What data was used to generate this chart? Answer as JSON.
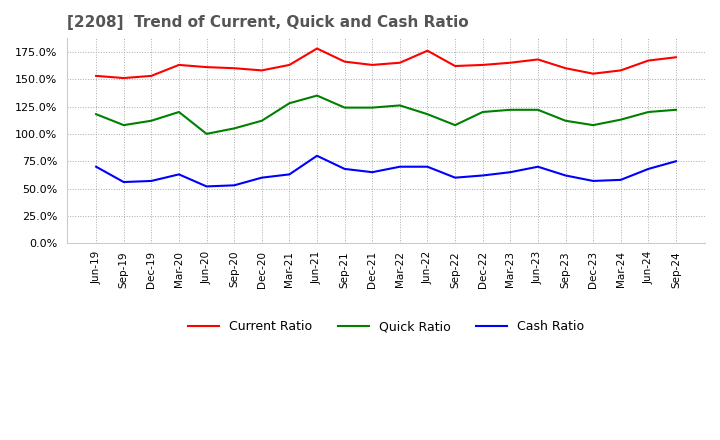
{
  "title": "[2208]  Trend of Current, Quick and Cash Ratio",
  "x_labels": [
    "Jun-19",
    "Sep-19",
    "Dec-19",
    "Mar-20",
    "Jun-20",
    "Sep-20",
    "Dec-20",
    "Mar-21",
    "Jun-21",
    "Sep-21",
    "Dec-21",
    "Mar-22",
    "Jun-22",
    "Sep-22",
    "Dec-22",
    "Mar-23",
    "Jun-23",
    "Sep-23",
    "Dec-23",
    "Mar-24",
    "Jun-24",
    "Sep-24"
  ],
  "current_ratio": [
    153,
    151,
    153,
    163,
    161,
    160,
    158,
    163,
    178,
    166,
    163,
    165,
    176,
    162,
    163,
    165,
    168,
    160,
    155,
    158,
    167,
    170
  ],
  "quick_ratio": [
    118,
    108,
    112,
    120,
    100,
    105,
    112,
    128,
    135,
    124,
    124,
    126,
    118,
    108,
    120,
    122,
    122,
    112,
    108,
    113,
    120,
    122
  ],
  "cash_ratio": [
    70,
    56,
    57,
    63,
    52,
    53,
    60,
    63,
    80,
    68,
    65,
    70,
    70,
    60,
    62,
    65,
    70,
    62,
    57,
    58,
    68,
    75
  ],
  "ylim": [
    0,
    187.5
  ],
  "yticks": [
    0,
    25,
    50,
    75,
    100,
    125,
    150,
    175
  ],
  "current_color": "#FF0000",
  "quick_color": "#008000",
  "cash_color": "#0000FF",
  "background_color": "#FFFFFF",
  "plot_bg_color": "#FFFFFF",
  "grid_color": "#AAAAAA",
  "title_color": "#555555"
}
